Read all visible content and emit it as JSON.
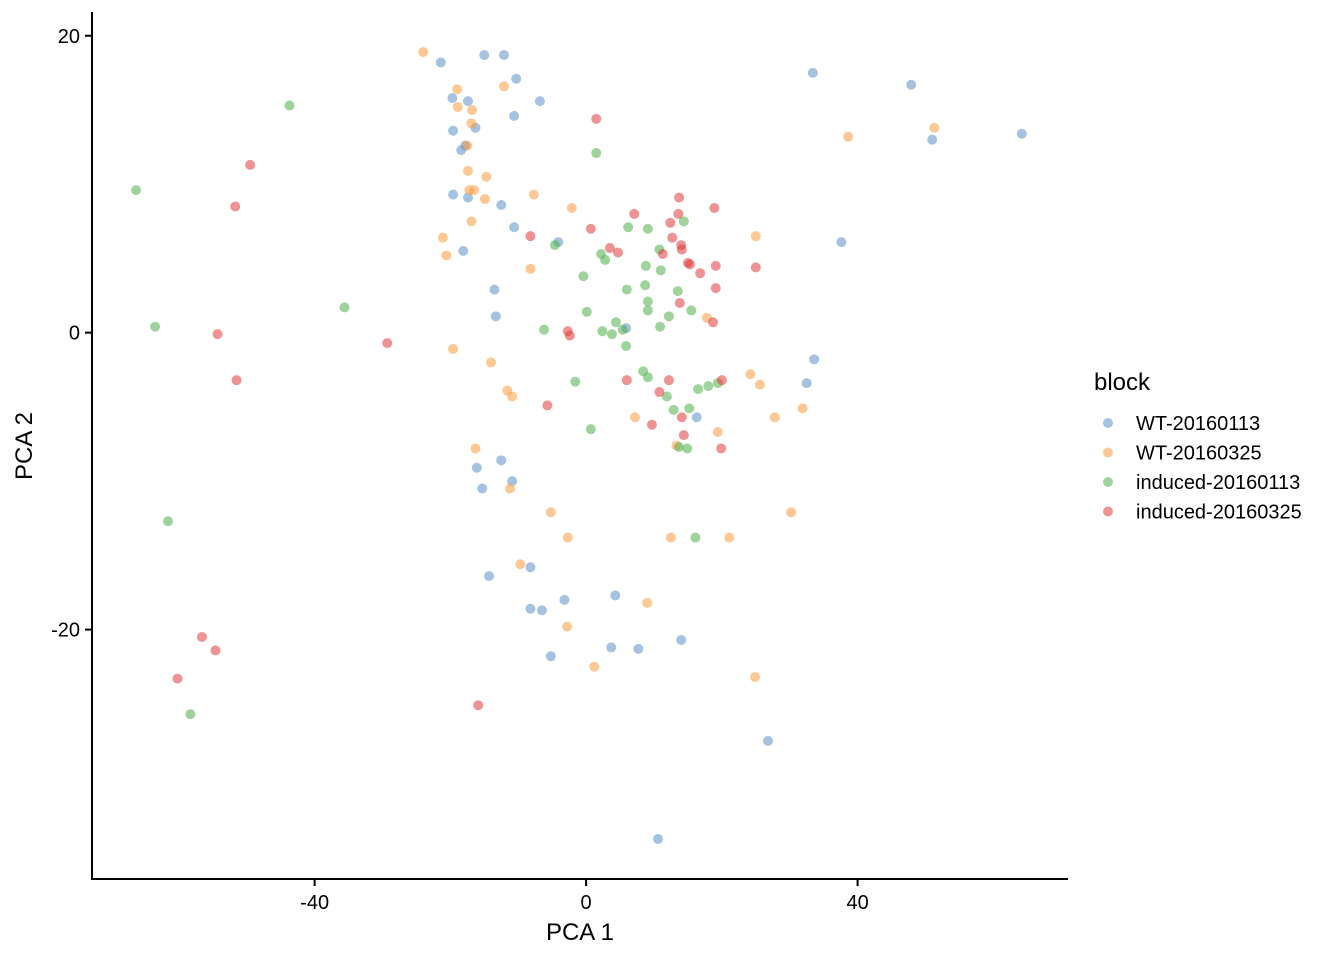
{
  "chart_data": {
    "type": "scatter",
    "xlabel": "PCA 1",
    "ylabel": "PCA 2",
    "xlim": [
      -72.8,
      71.0
    ],
    "ylim": [
      -36.8,
      21.6
    ],
    "xticks": [
      -40,
      0,
      40
    ],
    "yticks": [
      -20,
      0,
      20
    ],
    "grid": false,
    "legend_title": "block",
    "legend_position": "right",
    "series": [
      {
        "name": "WT-20160113",
        "color": "#5b8fc9",
        "x": [
          -21.4,
          -15.0,
          -12.1,
          -10.3,
          -6.8,
          -19.7,
          -17.4,
          -10.6,
          -19.6,
          -16.3,
          -17.8,
          -18.4,
          -19.6,
          -17.4,
          -12.5,
          -10.6,
          -18.1,
          -4.1,
          -13.5,
          -13.3,
          33.4,
          47.9,
          51.0,
          64.2,
          37.6,
          5.9,
          33.6,
          32.5,
          16.3,
          -12.5,
          -16.1,
          -10.9,
          -15.3,
          -14.3,
          -8.2,
          -8.2,
          -6.5,
          -3.2,
          4.3,
          3.7,
          7.7,
          14.0,
          -5.2,
          26.8,
          10.6
        ],
        "values": [
          18.2,
          18.7,
          18.7,
          17.1,
          15.6,
          15.8,
          15.6,
          14.6,
          13.6,
          13.8,
          12.6,
          12.3,
          9.3,
          9.1,
          8.6,
          7.1,
          5.5,
          6.1,
          2.9,
          1.1,
          17.5,
          16.7,
          13.0,
          13.4,
          6.1,
          0.3,
          -1.8,
          -3.4,
          -5.7,
          -8.6,
          -9.1,
          -10.0,
          -10.5,
          -16.4,
          -15.8,
          -18.6,
          -18.7,
          -18.0,
          -17.7,
          -21.2,
          -21.3,
          -20.7,
          -21.8,
          -27.5,
          -34.1
        ]
      },
      {
        "name": "WT-20160325",
        "color": "#fd9a3c",
        "x": [
          -24.0,
          -19.0,
          -12.1,
          -16.8,
          -18.9,
          -16.9,
          -17.5,
          -14.7,
          -17.4,
          -17.2,
          -16.5,
          -14.9,
          -7.7,
          -2.1,
          -16.9,
          -21.1,
          -20.6,
          -8.2,
          38.6,
          51.3,
          25.0,
          17.8,
          -19.6,
          -14.0,
          -11.6,
          -10.9,
          24.2,
          25.6,
          31.9,
          27.8,
          7.2,
          19.4,
          13.3,
          -16.3,
          -11.2,
          -5.2,
          30.2,
          -2.7,
          12.5,
          21.1,
          -9.7,
          9.0,
          -2.8,
          1.2,
          24.9
        ],
        "values": [
          18.9,
          16.4,
          16.6,
          15.0,
          15.2,
          14.1,
          12.6,
          10.5,
          10.9,
          9.6,
          9.6,
          9.0,
          9.3,
          8.4,
          7.5,
          6.4,
          5.2,
          4.3,
          13.2,
          13.8,
          6.5,
          1.0,
          -1.1,
          -2.0,
          -3.9,
          -4.3,
          -2.8,
          -3.5,
          -5.1,
          -5.7,
          -5.7,
          -6.7,
          -7.6,
          -7.8,
          -10.5,
          -12.1,
          -12.1,
          -13.8,
          -13.8,
          -13.8,
          -15.6,
          -18.2,
          -19.8,
          -22.5,
          -23.2
        ]
      },
      {
        "name": "induced-20160113",
        "color": "#4eb04a",
        "x": [
          -43.7,
          -66.3,
          -63.5,
          -35.6,
          -61.6,
          -58.3,
          1.5,
          6.2,
          9.1,
          14.4,
          -4.6,
          2.2,
          2.8,
          10.8,
          8.8,
          11.0,
          -0.4,
          8.7,
          6.0,
          13.5,
          9.1,
          0.1,
          4.4,
          9.1,
          12.2,
          15.5,
          -6.2,
          2.4,
          3.8,
          5.4,
          10.9,
          5.9,
          8.4,
          9.1,
          -1.6,
          16.5,
          18.0,
          19.4,
          11.9,
          12.9,
          15.2,
          0.7,
          13.7,
          14.9,
          16.1
        ],
        "values": [
          15.3,
          9.6,
          0.4,
          1.7,
          -12.7,
          -25.7,
          12.1,
          7.1,
          7.0,
          7.5,
          5.9,
          5.3,
          4.9,
          5.6,
          4.5,
          4.2,
          3.8,
          3.2,
          2.9,
          2.8,
          2.1,
          1.4,
          0.7,
          1.5,
          1.1,
          1.5,
          0.2,
          0.1,
          -0.1,
          0.2,
          0.4,
          -0.9,
          -2.6,
          -3.0,
          -3.3,
          -3.8,
          -3.6,
          -3.4,
          -4.3,
          -5.2,
          -5.1,
          -6.5,
          -7.7,
          -7.8,
          -13.8
        ]
      },
      {
        "name": "induced-20160325",
        "color": "#e0393a",
        "x": [
          -49.5,
          -51.7,
          -54.3,
          -51.5,
          -29.3,
          -56.6,
          -54.6,
          -60.2,
          -15.9,
          1.5,
          -8.2,
          0.7,
          7.1,
          13.7,
          18.9,
          13.6,
          12.4,
          3.5,
          4.7,
          12.7,
          14.0,
          14.1,
          11.3,
          15.0,
          15.3,
          19.1,
          25.0,
          16.8,
          19.1,
          13.8,
          18.7,
          -2.7,
          -2.4,
          6.0,
          12.2,
          20.0,
          10.8,
          -5.7,
          14.1,
          9.7,
          14.4,
          19.9
        ],
        "values": [
          11.3,
          8.5,
          -0.1,
          -3.2,
          -0.7,
          -20.5,
          -21.4,
          -23.3,
          -25.1,
          14.4,
          6.5,
          7.0,
          8.0,
          9.1,
          8.4,
          8.0,
          7.4,
          5.7,
          5.4,
          6.4,
          5.9,
          5.6,
          5.3,
          4.7,
          4.6,
          4.5,
          4.4,
          4.0,
          3.0,
          2.0,
          0.7,
          0.1,
          -0.2,
          -3.2,
          -3.2,
          -3.2,
          -4.0,
          -4.9,
          -5.7,
          -6.2,
          -6.9,
          -7.8
        ]
      }
    ]
  }
}
